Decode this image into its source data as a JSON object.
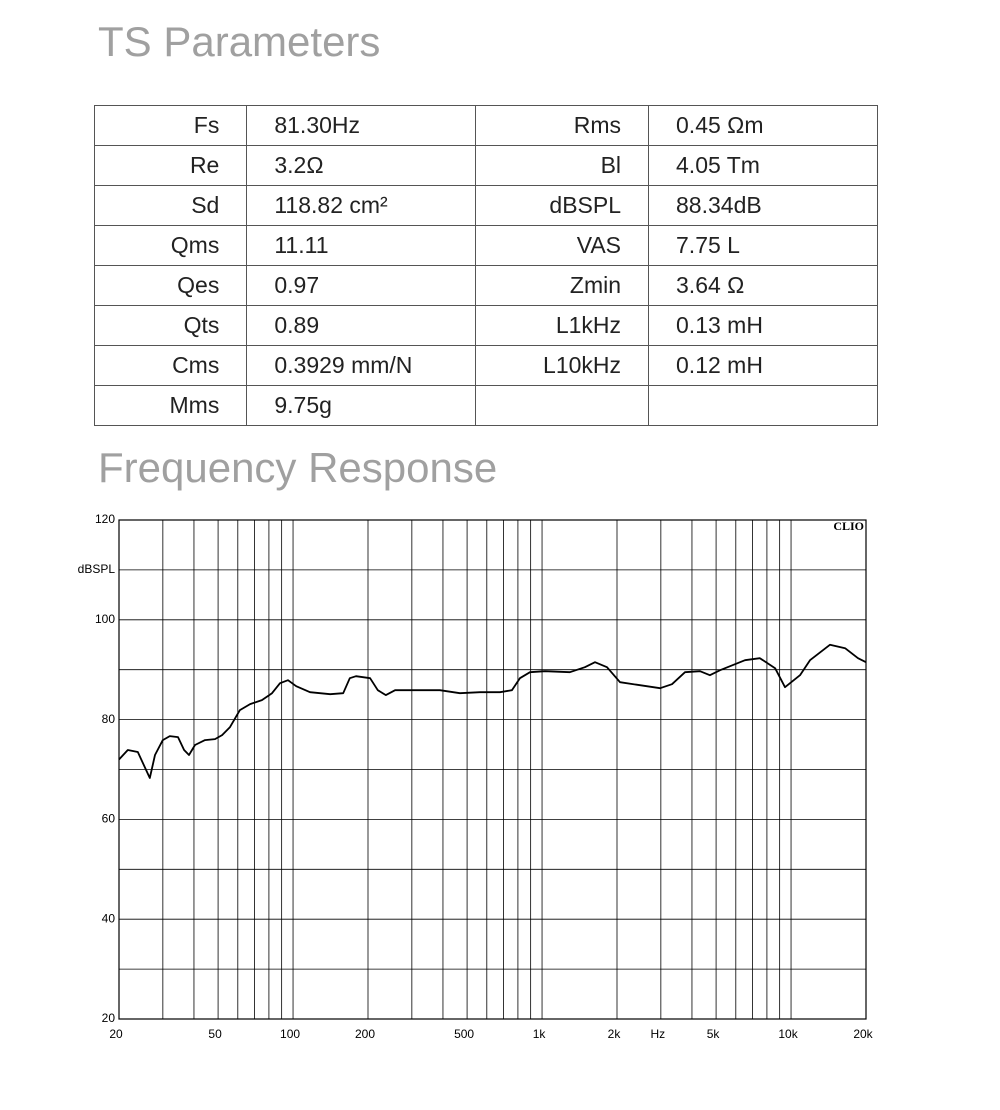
{
  "ts_title": "TS Parameters",
  "table": {
    "rows": [
      [
        "Fs",
        "81.30Hz",
        "Rms",
        "0.45 Ωm"
      ],
      [
        "Re",
        "3.2Ω",
        "Bl",
        "4.05 Tm"
      ],
      [
        "Sd",
        "118.82 cm²",
        "dBSPL",
        "88.34dB"
      ],
      [
        "Qms",
        "11.11",
        "VAS",
        "7.75 L"
      ],
      [
        "Qes",
        "0.97",
        "Zmin",
        "3.64 Ω"
      ],
      [
        "Qts",
        "0.89",
        "L1kHz",
        "0.13 mH"
      ],
      [
        "Cms",
        "0.3929 mm/N",
        "L10kHz",
        "0.12 mH"
      ],
      [
        "Mms",
        "9.75g",
        null,
        null
      ]
    ]
  },
  "fr_title": "Frequency Response",
  "chart_data": {
    "type": "line",
    "ylabel": "dBSPL",
    "annotation": "CLIO",
    "color": "#000000",
    "xscale": "log",
    "grid": true,
    "xlim": [
      20,
      20000
    ],
    "ylim": [
      20,
      120
    ],
    "xticks": [
      20,
      50,
      100,
      200,
      500,
      {
        "value": 1000,
        "label": "1k"
      },
      {
        "value": 2000,
        "label": "2k"
      },
      {
        "value": 3000,
        "label": "Hz"
      },
      {
        "value": 5000,
        "label": "5k"
      },
      {
        "value": 10000,
        "label": "10k"
      },
      {
        "value": 20000,
        "label": "20k"
      }
    ],
    "xminor": [
      30,
      40,
      60,
      70,
      80,
      90,
      300,
      400,
      600,
      700,
      800,
      900,
      4000,
      6000,
      7000,
      8000,
      9000
    ],
    "yticks": [
      20,
      40,
      60,
      80,
      100,
      120
    ],
    "yminor": [
      30,
      50,
      70,
      90,
      110
    ],
    "x": [
      20,
      21.7,
      23.8,
      25.7,
      26.6,
      27.9,
      30,
      32,
      34.5,
      36.5,
      38.2,
      40.4,
      44.3,
      48.6,
      51.9,
      55.8,
      61.2,
      67.2,
      75,
      82.3,
      88.6,
      95.4,
      103,
      117,
      141,
      159,
      169,
      179,
      204,
      219,
      236,
      257,
      323,
      389,
      468,
      564,
      678,
      757,
      815,
      895,
      1028,
      1294,
      1486,
      1632,
      1824,
      2056,
      2474,
      2978,
      3326,
      3750,
      4308,
      4722,
      5188,
      6532,
      7500,
      8630,
      9460,
      10860,
      11920,
      14320,
      16480,
      18580,
      20000
    ],
    "values": [
      72,
      73.9,
      73.5,
      69.9,
      68.3,
      72.9,
      75.9,
      76.7,
      76.5,
      73.9,
      72.9,
      74.9,
      75.9,
      76.1,
      76.9,
      78.5,
      81.9,
      83.1,
      83.9,
      85.3,
      87.3,
      87.9,
      86.7,
      85.5,
      85.1,
      85.3,
      88.3,
      88.7,
      88.3,
      85.9,
      84.9,
      85.9,
      85.9,
      85.9,
      85.3,
      85.5,
      85.5,
      85.9,
      88.3,
      89.5,
      89.7,
      89.5,
      90.5,
      91.5,
      90.5,
      87.5,
      86.9,
      86.3,
      87.1,
      89.5,
      89.7,
      88.9,
      89.9,
      91.9,
      92.3,
      90.3,
      86.5,
      88.9,
      91.9,
      95,
      94.3,
      92.3,
      91.5
    ]
  }
}
